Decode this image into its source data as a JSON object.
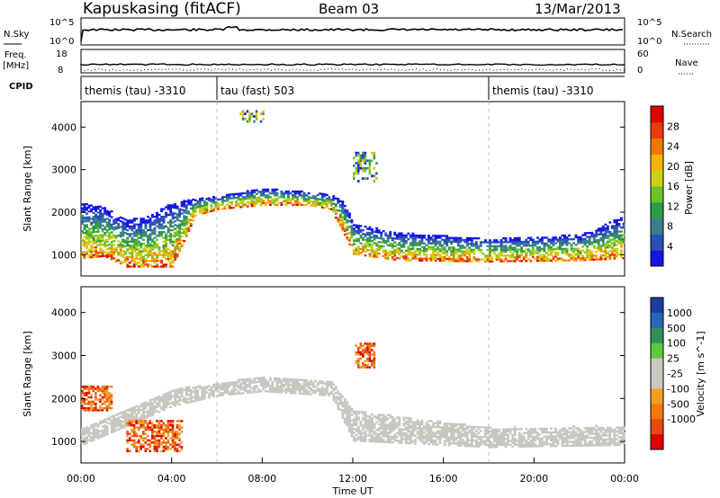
{
  "header": {
    "station": "Kapuskasing (fitACF)",
    "beam": "Beam 03",
    "date": "13/Mar/2013"
  },
  "side_labels": {
    "nsky": "N.Sky",
    "freq": "Freq.",
    "freq_unit": "[MHz]",
    "cpid": "CPID",
    "nsearch": "N.Search",
    "nave": "Nave"
  },
  "summary_ticks": {
    "noise_left": [
      "10^5",
      "10^0"
    ],
    "noise_right": [
      "10^5",
      "10^0"
    ],
    "freq_left": [
      "18",
      "8"
    ],
    "nave_right": [
      "60",
      "0"
    ]
  },
  "cpid_segments": [
    {
      "label": "themis (tau) -3310",
      "start_hour": 0,
      "end_hour": 6
    },
    {
      "label": "tau (fast) 503",
      "start_hour": 6,
      "end_hour": 18
    },
    {
      "label": "themis (tau) -3310",
      "start_hour": 18,
      "end_hour": 24
    }
  ],
  "chart_data": [
    {
      "type": "heatmap",
      "title": "Power",
      "ylabel": "Slant Range [km]",
      "xlim_hours": [
        0,
        24
      ],
      "ylim_km": [
        500,
        4600
      ],
      "yticks": [
        1000,
        2000,
        3000,
        4000
      ],
      "colorbar": {
        "label": "Power [dB]",
        "ticks": [
          4,
          8,
          12,
          16,
          20,
          24,
          28
        ],
        "range": [
          0,
          32
        ],
        "colors": [
          "#1414e6",
          "#2a4fb8",
          "#3c7d8c",
          "#2e9a4a",
          "#6cc22a",
          "#c8d21a",
          "#f5b400",
          "#f07800",
          "#e83a10",
          "#e00000"
        ]
      },
      "scatter_band": [
        {
          "hour": 0.0,
          "low": 900,
          "high": 2200
        },
        {
          "hour": 1.0,
          "low": 950,
          "high": 2100
        },
        {
          "hour": 2.0,
          "low": 700,
          "high": 1800
        },
        {
          "hour": 3.0,
          "low": 700,
          "high": 1900
        },
        {
          "hour": 4.0,
          "low": 700,
          "high": 2200
        },
        {
          "hour": 5.0,
          "low": 1900,
          "high": 2300
        },
        {
          "hour": 6.0,
          "low": 2050,
          "high": 2350
        },
        {
          "hour": 8.0,
          "low": 2150,
          "high": 2550
        },
        {
          "hour": 10.0,
          "low": 2150,
          "high": 2450
        },
        {
          "hour": 11.0,
          "low": 2050,
          "high": 2400
        },
        {
          "hour": 11.6,
          "low": 1450,
          "high": 2200
        },
        {
          "hour": 12.0,
          "low": 1000,
          "high": 1700
        },
        {
          "hour": 14.0,
          "low": 850,
          "high": 1500
        },
        {
          "hour": 18.0,
          "low": 820,
          "high": 1350
        },
        {
          "hour": 22.0,
          "low": 850,
          "high": 1450
        },
        {
          "hour": 24.0,
          "low": 900,
          "high": 1900
        }
      ],
      "clusters": [
        {
          "hour_start": 12.0,
          "hour_end": 13.0,
          "low_km": 2700,
          "high_km": 3400
        },
        {
          "hour_start": 7.0,
          "hour_end": 8.0,
          "low_km": 4100,
          "high_km": 4350
        }
      ]
    },
    {
      "type": "heatmap",
      "title": "Velocity",
      "ylabel": "Slant Range [km]",
      "xlabel": "Time UT",
      "xticks": [
        "00:00",
        "04:00",
        "08:00",
        "12:00",
        "16:00",
        "20:00",
        "00:00"
      ],
      "xlim_hours": [
        0,
        24
      ],
      "ylim_km": [
        500,
        4600
      ],
      "yticks": [
        1000,
        2000,
        3000,
        4000
      ],
      "colorbar": {
        "label": "Velocity [m s^-1]",
        "ticks": [
          "1000",
          "500",
          "100",
          "25",
          "-25",
          "-100",
          "-500",
          "-1000"
        ],
        "colors": [
          "#1c3ca8",
          "#2a64b4",
          "#2f8f5a",
          "#5ec83c",
          "#c8c8c0",
          "#c8c8c0",
          "#f2a020",
          "#f07a10",
          "#ea4a10",
          "#e00000"
        ]
      },
      "ground_scatter_band": [
        {
          "hour": 0.0,
          "low": 900,
          "high": 1300
        },
        {
          "hour": 4.0,
          "low": 1800,
          "high": 2200
        },
        {
          "hour": 6.0,
          "low": 2050,
          "high": 2350
        },
        {
          "hour": 8.0,
          "low": 2150,
          "high": 2500
        },
        {
          "hour": 11.0,
          "low": 2050,
          "high": 2400
        },
        {
          "hour": 12.0,
          "low": 1000,
          "high": 1700
        },
        {
          "hour": 18.0,
          "low": 850,
          "high": 1300
        },
        {
          "hour": 24.0,
          "low": 900,
          "high": 1350
        }
      ],
      "negative_velocity_patches": [
        {
          "hour_start": 2.0,
          "hour_end": 4.5,
          "low_km": 750,
          "high_km": 1500,
          "value": -800
        },
        {
          "hour_start": 0.0,
          "hour_end": 1.4,
          "low_km": 1700,
          "high_km": 2300,
          "value": -300
        },
        {
          "hour_start": 12.1,
          "hour_end": 12.9,
          "low_km": 2700,
          "high_km": 3300,
          "value": -200
        }
      ]
    }
  ]
}
